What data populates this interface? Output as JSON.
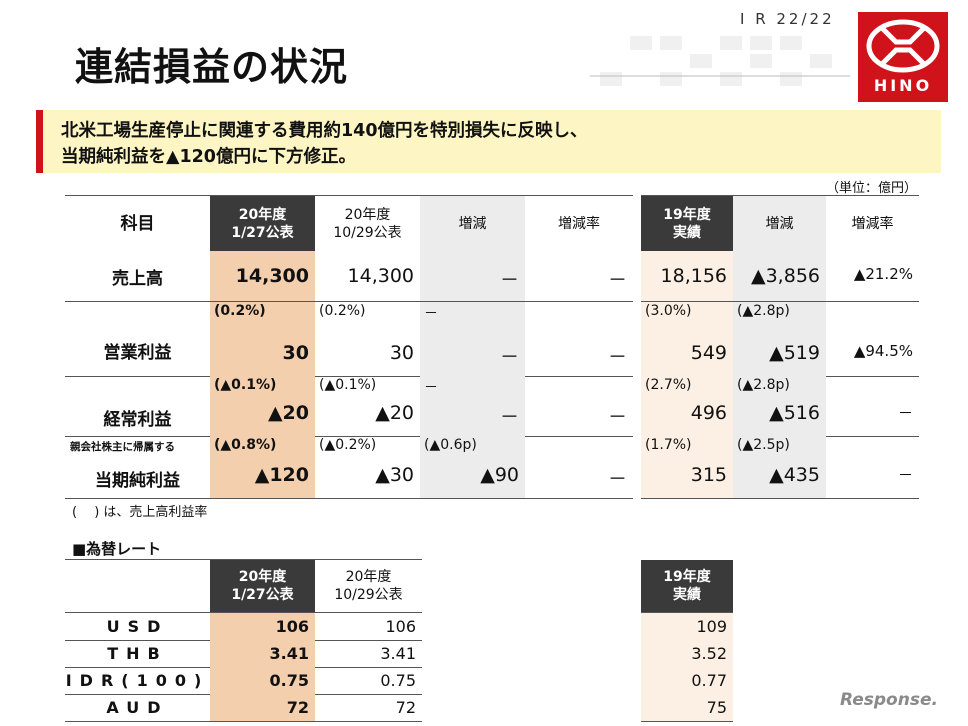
{
  "header": {
    "title": "連結損益の状況",
    "page": "I R  22/22",
    "logo_text": "HINO"
  },
  "banner": {
    "line1": "北米工場生産停止に関連する費用約140億円を特別損失に反映し、",
    "line2": "当期純利益を▲120億円に下方修正。"
  },
  "unit": "（単位：億円）",
  "pl": {
    "headers": {
      "item": "科目",
      "fy20_new": "20年度\n1/27公表",
      "fy20_old": "20年度\n10/29公表",
      "diff": "増減",
      "diff_rate": "増減率",
      "fy19": "19年度\n実績",
      "diff19": "増減",
      "diff_rate19": "増減率"
    },
    "rows": [
      {
        "label": "売上高",
        "sublabel": "",
        "sub": [
          "",
          "",
          "",
          "",
          "",
          ""
        ],
        "vals": [
          "14,300",
          "14,300",
          "－",
          "－",
          "18,156",
          "▲3,856",
          "▲21.2%"
        ]
      },
      {
        "label": "営業利益",
        "sublabel": "",
        "sub": [
          "(0.2%)",
          "(0.2%)",
          "－",
          "(3.0%)",
          "(▲2.8p)",
          ""
        ],
        "vals": [
          "30",
          "30",
          "－",
          "－",
          "549",
          "▲519",
          "▲94.5%"
        ]
      },
      {
        "label": "経常利益",
        "sublabel": "",
        "sub": [
          "(▲0.1%)",
          "(▲0.1%)",
          "－",
          "(2.7%)",
          "(▲2.8p)",
          ""
        ],
        "vals": [
          "▲20",
          "▲20",
          "－",
          "－",
          "496",
          "▲516",
          "－"
        ]
      },
      {
        "label": "当期純利益",
        "sublabel": "親会社株主に帰属する",
        "sub": [
          "(▲0.8%)",
          "(▲0.2%)",
          "(▲0.6p)",
          "(1.7%)",
          "(▲2.5p)",
          ""
        ],
        "vals": [
          "▲120",
          "▲30",
          "▲90",
          "－",
          "315",
          "▲435",
          "－"
        ]
      }
    ],
    "note": "(　 ) は、売上高利益率"
  },
  "fx": {
    "title": "■為替レート",
    "headers": {
      "fy20_new": "20年度\n1/27公表",
      "fy20_old": "20年度\n10/29公表",
      "fy19": "19年度\n実績"
    },
    "rows": [
      {
        "label": "USD",
        "vals": [
          "106",
          "106",
          "109"
        ]
      },
      {
        "label": "THB",
        "vals": [
          "3.41",
          "3.41",
          "3.52"
        ]
      },
      {
        "label": "IDR(100)",
        "vals": [
          "0.75",
          "0.75",
          "0.77"
        ]
      },
      {
        "label": "AUD",
        "vals": [
          "72",
          "72",
          "75"
        ]
      }
    ]
  },
  "watermark": "Response."
}
